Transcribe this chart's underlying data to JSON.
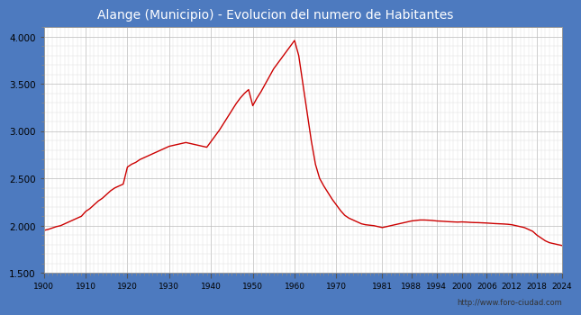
{
  "title": "Alange (Municipio) - Evolucion del numero de Habitantes",
  "header_bg": "#4d7abf",
  "plot_bg": "#ffffff",
  "outer_bg": "#4d7abf",
  "line_color": "#cc0000",
  "line_width": 1.0,
  "url_text": "http://www.foro-ciudad.com",
  "ylim": [
    1500,
    4100
  ],
  "yticks": [
    1500,
    2000,
    2500,
    3000,
    3500,
    4000
  ],
  "ytick_labels": [
    "1.500",
    "2.000",
    "2.500",
    "3.000",
    "3.500",
    "4.000"
  ],
  "xtick_labels": [
    "1900",
    "1910",
    "1920",
    "1930",
    "1940",
    "1950",
    "1960",
    "1970",
    "1981",
    "1988",
    "1994",
    "2000",
    "2006",
    "2012",
    "2018",
    "2024"
  ],
  "data": [
    [
      1900,
      1950
    ],
    [
      1901,
      1960
    ],
    [
      1902,
      1975
    ],
    [
      1903,
      1990
    ],
    [
      1904,
      2000
    ],
    [
      1905,
      2020
    ],
    [
      1906,
      2040
    ],
    [
      1907,
      2060
    ],
    [
      1908,
      2080
    ],
    [
      1909,
      2100
    ],
    [
      1910,
      2150
    ],
    [
      1911,
      2180
    ],
    [
      1912,
      2220
    ],
    [
      1913,
      2260
    ],
    [
      1914,
      2290
    ],
    [
      1915,
      2330
    ],
    [
      1916,
      2370
    ],
    [
      1917,
      2400
    ],
    [
      1918,
      2420
    ],
    [
      1919,
      2440
    ],
    [
      1920,
      2620
    ],
    [
      1921,
      2650
    ],
    [
      1922,
      2670
    ],
    [
      1923,
      2700
    ],
    [
      1924,
      2720
    ],
    [
      1925,
      2740
    ],
    [
      1926,
      2760
    ],
    [
      1927,
      2780
    ],
    [
      1928,
      2800
    ],
    [
      1929,
      2820
    ],
    [
      1930,
      2840
    ],
    [
      1931,
      2850
    ],
    [
      1932,
      2860
    ],
    [
      1933,
      2870
    ],
    [
      1934,
      2880
    ],
    [
      1935,
      2870
    ],
    [
      1936,
      2860
    ],
    [
      1937,
      2850
    ],
    [
      1938,
      2840
    ],
    [
      1939,
      2830
    ],
    [
      1940,
      2890
    ],
    [
      1941,
      2950
    ],
    [
      1942,
      3010
    ],
    [
      1943,
      3080
    ],
    [
      1944,
      3150
    ],
    [
      1945,
      3220
    ],
    [
      1946,
      3290
    ],
    [
      1947,
      3350
    ],
    [
      1948,
      3400
    ],
    [
      1949,
      3440
    ],
    [
      1950,
      3270
    ],
    [
      1951,
      3350
    ],
    [
      1952,
      3420
    ],
    [
      1953,
      3500
    ],
    [
      1954,
      3580
    ],
    [
      1955,
      3660
    ],
    [
      1956,
      3720
    ],
    [
      1957,
      3780
    ],
    [
      1958,
      3840
    ],
    [
      1959,
      3900
    ],
    [
      1960,
      3960
    ],
    [
      1961,
      3800
    ],
    [
      1962,
      3500
    ],
    [
      1963,
      3200
    ],
    [
      1964,
      2900
    ],
    [
      1965,
      2650
    ],
    [
      1966,
      2500
    ],
    [
      1967,
      2420
    ],
    [
      1968,
      2350
    ],
    [
      1969,
      2280
    ],
    [
      1970,
      2220
    ],
    [
      1971,
      2160
    ],
    [
      1972,
      2110
    ],
    [
      1973,
      2080
    ],
    [
      1974,
      2060
    ],
    [
      1975,
      2040
    ],
    [
      1976,
      2020
    ],
    [
      1977,
      2010
    ],
    [
      1978,
      2005
    ],
    [
      1979,
      2000
    ],
    [
      1980,
      1990
    ],
    [
      1981,
      1980
    ],
    [
      1982,
      1990
    ],
    [
      1983,
      2000
    ],
    [
      1984,
      2010
    ],
    [
      1985,
      2020
    ],
    [
      1986,
      2030
    ],
    [
      1987,
      2040
    ],
    [
      1988,
      2050
    ],
    [
      1989,
      2055
    ],
    [
      1990,
      2060
    ],
    [
      1991,
      2060
    ],
    [
      1992,
      2058
    ],
    [
      1993,
      2055
    ],
    [
      1994,
      2050
    ],
    [
      1995,
      2048
    ],
    [
      1996,
      2045
    ],
    [
      1997,
      2042
    ],
    [
      1998,
      2040
    ],
    [
      1999,
      2038
    ],
    [
      2000,
      2040
    ],
    [
      2001,
      2038
    ],
    [
      2002,
      2035
    ],
    [
      2003,
      2033
    ],
    [
      2004,
      2032
    ],
    [
      2005,
      2030
    ],
    [
      2006,
      2028
    ],
    [
      2007,
      2025
    ],
    [
      2008,
      2022
    ],
    [
      2009,
      2020
    ],
    [
      2010,
      2018
    ],
    [
      2011,
      2015
    ],
    [
      2012,
      2010
    ],
    [
      2013,
      2000
    ],
    [
      2014,
      1990
    ],
    [
      2015,
      1980
    ],
    [
      2016,
      1960
    ],
    [
      2017,
      1940
    ],
    [
      2018,
      1900
    ],
    [
      2019,
      1870
    ],
    [
      2020,
      1840
    ],
    [
      2021,
      1820
    ],
    [
      2022,
      1810
    ],
    [
      2023,
      1800
    ],
    [
      2024,
      1790
    ]
  ]
}
